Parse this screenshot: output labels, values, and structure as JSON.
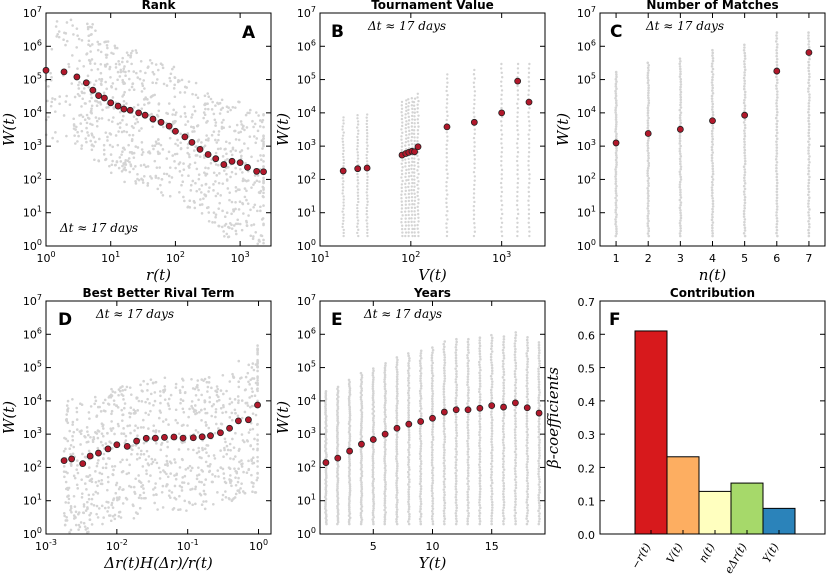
{
  "chart_data": [
    {
      "id": "A",
      "type": "scatter",
      "title": "Rank",
      "panel_label": "A",
      "annotation": "Δt ≈ 17 days",
      "xlabel": "r(t)",
      "ylabel": "W(t)",
      "xscale": "log",
      "yscale": "log",
      "xlim": [
        1,
        3000
      ],
      "ylim": [
        1,
        10000000
      ],
      "xticks": [
        1,
        10,
        100,
        1000
      ],
      "xticklabels": [
        "10^0",
        "10^1",
        "10^2",
        "10^3"
      ],
      "yticks": [
        1,
        10,
        100,
        1000,
        10000,
        100000,
        1000000,
        10000000
      ],
      "yticklabels": [
        "10^0",
        "10^1",
        "10^2",
        "10^3",
        "10^4",
        "10^5",
        "10^6",
        "10^7"
      ],
      "points": [
        [
          1.0,
          190000
        ],
        [
          1.9,
          170000
        ],
        [
          3.0,
          120000
        ],
        [
          4.2,
          80000
        ],
        [
          5.3,
          48000
        ],
        [
          6.5,
          33000
        ],
        [
          8.0,
          28000
        ],
        [
          10,
          20000
        ],
        [
          13,
          16000
        ],
        [
          16,
          13000
        ],
        [
          20,
          12000
        ],
        [
          27,
          10000
        ],
        [
          34,
          8500
        ],
        [
          45,
          6500
        ],
        [
          60,
          5200
        ],
        [
          80,
          4000
        ],
        [
          100,
          2800
        ],
        [
          140,
          1900
        ],
        [
          180,
          1300
        ],
        [
          240,
          800
        ],
        [
          320,
          560
        ],
        [
          420,
          420
        ],
        [
          560,
          280
        ],
        [
          750,
          350
        ],
        [
          1000,
          320
        ],
        [
          1300,
          230
        ],
        [
          1800,
          175
        ],
        [
          2300,
          170
        ]
      ]
    },
    {
      "id": "B",
      "type": "scatter",
      "title": "Tournament Value",
      "panel_label": "B",
      "annotation": "Δt ≈ 17 days",
      "xlabel": "V(t)",
      "ylabel": "W(t)",
      "xscale": "log",
      "yscale": "log",
      "xlim": [
        10,
        3000
      ],
      "ylim": [
        1,
        10000000
      ],
      "xticks": [
        10,
        100,
        1000
      ],
      "xticklabels": [
        "10^1",
        "10^2",
        "10^3"
      ],
      "yticks": [
        1,
        10,
        100,
        1000,
        10000,
        100000,
        1000000,
        10000000
      ],
      "yticklabels": [
        "10^0",
        "10^1",
        "10^2",
        "10^3",
        "10^4",
        "10^5",
        "10^6",
        "10^7"
      ],
      "points": [
        [
          18,
          180
        ],
        [
          26,
          210
        ],
        [
          33,
          220
        ],
        [
          80,
          540
        ],
        [
          88,
          600
        ],
        [
          95,
          650
        ],
        [
          103,
          700
        ],
        [
          110,
          680
        ],
        [
          120,
          960
        ],
        [
          250,
          3800
        ],
        [
          500,
          5200
        ],
        [
          1000,
          10000
        ],
        [
          1500,
          90000
        ],
        [
          2000,
          21000
        ]
      ]
    },
    {
      "id": "C",
      "type": "scatter",
      "title": "Number of Matches",
      "panel_label": "C",
      "annotation": "Δt ≈ 17 days",
      "xlabel": "n(t)",
      "ylabel": "W(t)",
      "xscale": "linear",
      "yscale": "log",
      "xlim": [
        0.5,
        7.5
      ],
      "ylim": [
        1,
        10000000
      ],
      "xticks": [
        1,
        2,
        3,
        4,
        5,
        6,
        7
      ],
      "xticklabels": [
        "1",
        "2",
        "3",
        "4",
        "5",
        "6",
        "7"
      ],
      "yticks": [
        1,
        10,
        100,
        1000,
        10000,
        100000,
        1000000,
        10000000
      ],
      "yticklabels": [
        "10^0",
        "10^1",
        "10^2",
        "10^3",
        "10^4",
        "10^5",
        "10^6",
        "10^7"
      ],
      "points": [
        [
          1,
          1250
        ],
        [
          2,
          2400
        ],
        [
          3,
          3200
        ],
        [
          4,
          5800
        ],
        [
          5,
          8500
        ],
        [
          6,
          180000
        ],
        [
          7,
          650000
        ]
      ]
    },
    {
      "id": "D",
      "type": "scatter",
      "title": "Best Better Rival Term",
      "panel_label": "D",
      "annotation": "Δt ≈ 17 days",
      "xlabel": "Δr(t)H(Δr)/r(t)",
      "ylabel": "W(t)",
      "xscale": "log",
      "yscale": "log",
      "xlim": [
        0.001,
        1.5
      ],
      "ylim": [
        1,
        10000000
      ],
      "xticks": [
        0.001,
        0.01,
        0.1,
        1
      ],
      "xticklabels": [
        "10^-3",
        "10^-2",
        "10^-1",
        "10^0"
      ],
      "yticks": [
        1,
        10,
        100,
        1000,
        10000,
        100000,
        1000000,
        10000000
      ],
      "yticklabels": [
        "10^0",
        "10^1",
        "10^2",
        "10^3",
        "10^4",
        "10^5",
        "10^6",
        "10^7"
      ],
      "points": [
        [
          0.0018,
          160
        ],
        [
          0.0023,
          180
        ],
        [
          0.0033,
          130
        ],
        [
          0.0042,
          220
        ],
        [
          0.0055,
          270
        ],
        [
          0.0075,
          360
        ],
        [
          0.01,
          480
        ],
        [
          0.014,
          430
        ],
        [
          0.019,
          620
        ],
        [
          0.026,
          750
        ],
        [
          0.035,
          760
        ],
        [
          0.047,
          800
        ],
        [
          0.064,
          820
        ],
        [
          0.086,
          760
        ],
        [
          0.12,
          780
        ],
        [
          0.16,
          830
        ],
        [
          0.21,
          900
        ],
        [
          0.29,
          1100
        ],
        [
          0.39,
          1500
        ],
        [
          0.52,
          2500
        ],
        [
          0.72,
          2700
        ],
        [
          0.97,
          7500
        ]
      ]
    },
    {
      "id": "E",
      "type": "scatter",
      "title": "Years",
      "panel_label": "E",
      "annotation": "Δt ≈ 17 days",
      "xlabel": "Y(t)",
      "ylabel": "W(t)",
      "xscale": "linear",
      "yscale": "log",
      "xlim": [
        0.5,
        19.5
      ],
      "ylim": [
        1,
        10000000
      ],
      "xticks": [
        5,
        10,
        15
      ],
      "xticklabels": [
        "5",
        "10",
        "15"
      ],
      "yticks": [
        1,
        10,
        100,
        1000,
        10000,
        100000,
        1000000,
        10000000
      ],
      "yticklabels": [
        "10^0",
        "10^1",
        "10^2",
        "10^3",
        "10^4",
        "10^5",
        "10^6",
        "10^7"
      ],
      "points": [
        [
          1,
          140
        ],
        [
          2,
          190
        ],
        [
          3,
          310
        ],
        [
          4,
          500
        ],
        [
          5,
          690
        ],
        [
          6,
          1000
        ],
        [
          7,
          1500
        ],
        [
          8,
          2000
        ],
        [
          9,
          2400
        ],
        [
          10,
          3000
        ],
        [
          11,
          4600
        ],
        [
          12,
          5400
        ],
        [
          13,
          5400
        ],
        [
          14,
          6000
        ],
        [
          15,
          7200
        ],
        [
          16,
          6500
        ],
        [
          17,
          8700
        ],
        [
          18,
          6200
        ],
        [
          19,
          4300
        ]
      ]
    },
    {
      "id": "F",
      "type": "bar",
      "title": "Contribution",
      "panel_label": "F",
      "ylabel": "β-coefficients",
      "ylim": [
        0,
        0.7
      ],
      "yticks": [
        0.0,
        0.1,
        0.2,
        0.3,
        0.4,
        0.5,
        0.6,
        0.7
      ],
      "yticklabels": [
        "0.0",
        "0.1",
        "0.2",
        "0.3",
        "0.4",
        "0.5",
        "0.6",
        "0.7"
      ],
      "categories": [
        "−r(t)",
        "V(t)",
        "n(t)",
        "e^Δr(t)",
        "Y(t)"
      ],
      "values": [
        0.61,
        0.232,
        0.128,
        0.153,
        0.077
      ],
      "colors": [
        "#d7191c",
        "#fdae61",
        "#ffffbf",
        "#a6d96a",
        "#2b83ba"
      ]
    }
  ]
}
